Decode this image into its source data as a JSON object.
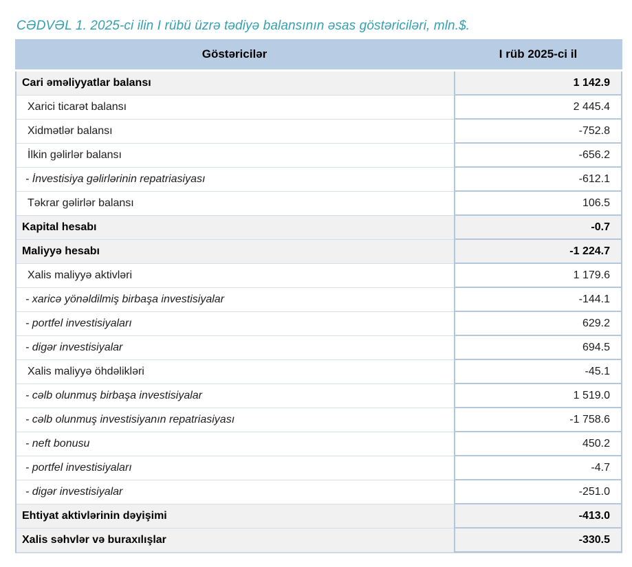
{
  "title": "CƏDVƏL 1. 2025-ci ilin I rübü üzrə tədiyə balansının əsas göstəriciləri, mln.$.",
  "table": {
    "columns": [
      "Göstəricilər",
      "I rüb 2025-ci il"
    ],
    "rows": [
      {
        "label": "Cari əməliyyatlar balansı",
        "value": "1 142.9",
        "level": "main"
      },
      {
        "label": "Xarici ticarət balansı",
        "value": "2 445.4",
        "level": "sub"
      },
      {
        "label": "Xidmətlər balansı",
        "value": "-752.8",
        "level": "sub"
      },
      {
        "label": "İlkin gəlirlər balansı",
        "value": "-656.2",
        "level": "sub"
      },
      {
        "label": "- İnvestisiya gəlirlərinin repatriasiyası",
        "value": "-612.1",
        "level": "detail"
      },
      {
        "label": "Təkrar gəlirlər balansı",
        "value": "106.5",
        "level": "sub"
      },
      {
        "label": "Kapital hesabı",
        "value": "-0.7",
        "level": "main"
      },
      {
        "label": "Maliyyə hesabı",
        "value": "-1 224.7",
        "level": "main"
      },
      {
        "label": "Xalis maliyyə aktivləri",
        "value": "1 179.6",
        "level": "sub"
      },
      {
        "label": "- xaricə yönəldilmiş birbaşa investisiyalar",
        "value": "-144.1",
        "level": "detail"
      },
      {
        "label": "- portfel investisiyaları",
        "value": "629.2",
        "level": "detail"
      },
      {
        "label": "- digər investisiyalar",
        "value": "694.5",
        "level": "detail"
      },
      {
        "label": "Xalis maliyyə öhdəlikləri",
        "value": "-45.1",
        "level": "sub"
      },
      {
        "label": "- cəlb olunmuş birbaşa investisiyalar",
        "value": "1 519.0",
        "level": "detail"
      },
      {
        "label": "- cəlb olunmuş investisiyanın repatriasiyası",
        "value": "-1 758.6",
        "level": "detail"
      },
      {
        "label": "- neft bonusu",
        "value": "450.2",
        "level": "detail"
      },
      {
        "label": "- portfel investisiyaları",
        "value": "-4.7",
        "level": "detail"
      },
      {
        "label": "- digər investisiyalar",
        "value": "-251.0",
        "level": "detail"
      },
      {
        "label": "Ehtiyat aktivlərinin dəyişimi",
        "value": "-413.0",
        "level": "main"
      },
      {
        "label": "Xalis səhvlər və buraxılışlar",
        "value": "-330.5",
        "level": "main"
      }
    ]
  },
  "colors": {
    "title_text": "#35a0b0",
    "header_bg": "#b8cce4",
    "shaded_row_bg": "#f1f1f2",
    "grid_border": "#b4c6dc",
    "light_border": "#d5deea"
  }
}
